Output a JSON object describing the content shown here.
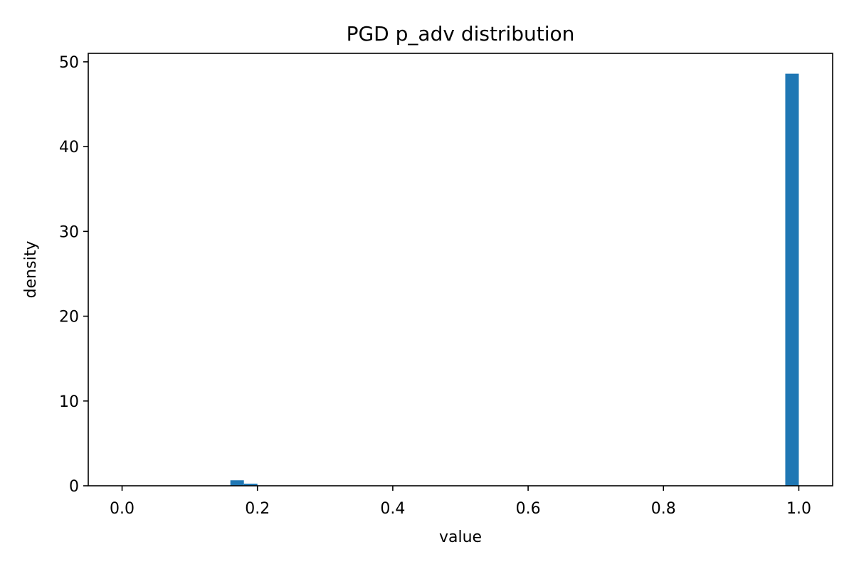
{
  "chart_data": {
    "type": "bar",
    "title": "PGD p_adv distribution",
    "xlabel": "value",
    "ylabel": "density",
    "xlim": [
      -0.05,
      1.05
    ],
    "ylim": [
      0,
      51
    ],
    "bin_width": 0.02,
    "bars": [
      {
        "x_start": 0.16,
        "x_end": 0.18,
        "value": 0.65
      },
      {
        "x_start": 0.18,
        "x_end": 0.2,
        "value": 0.25
      },
      {
        "x_start": 0.98,
        "x_end": 1.0,
        "value": 48.6
      }
    ],
    "x_ticks": [
      {
        "value": 0.0,
        "label": "0.0"
      },
      {
        "value": 0.2,
        "label": "0.2"
      },
      {
        "value": 0.4,
        "label": "0.4"
      },
      {
        "value": 0.6,
        "label": "0.6"
      },
      {
        "value": 0.8,
        "label": "0.8"
      },
      {
        "value": 1.0,
        "label": "1.0"
      }
    ],
    "y_ticks": [
      {
        "value": 0,
        "label": "0"
      },
      {
        "value": 10,
        "label": "10"
      },
      {
        "value": 20,
        "label": "20"
      },
      {
        "value": 30,
        "label": "30"
      },
      {
        "value": 40,
        "label": "40"
      },
      {
        "value": 50,
        "label": "50"
      }
    ],
    "bar_color": "#1f77b4",
    "grid": false,
    "legend": "none"
  }
}
